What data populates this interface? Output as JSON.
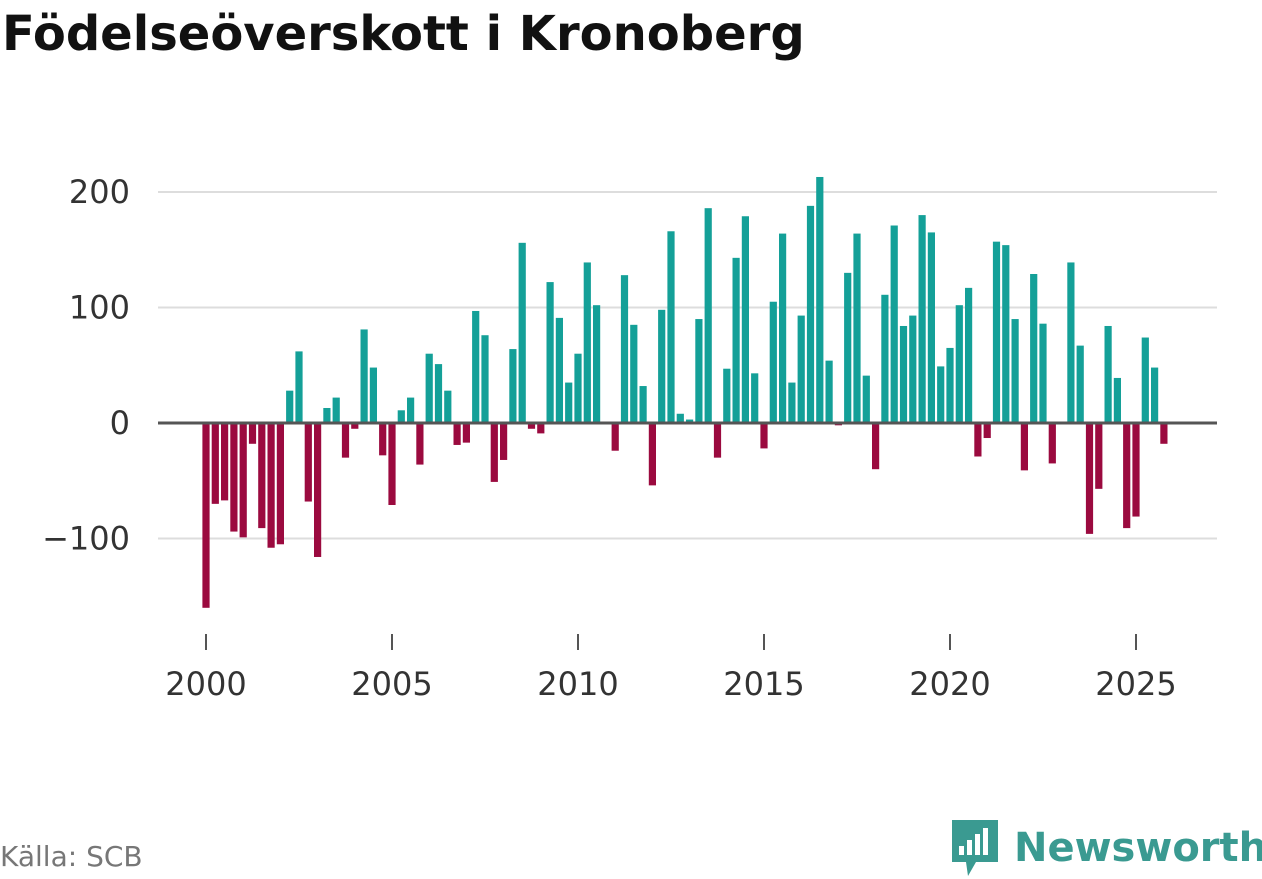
{
  "title": "Födelseöverskott i Kronoberg",
  "source": "Källa: SCB",
  "brand": "Newsworthy",
  "colors": {
    "positive": "#14a098",
    "negative": "#9b0a3f",
    "grid": "#dddddd",
    "zero": "#555555",
    "brand": "#3a9a91"
  },
  "chart_data": {
    "type": "bar",
    "title": "Födelseöverskott i Kronoberg",
    "xlabel": "",
    "ylabel": "",
    "ylim": [
      -170,
      225
    ],
    "yticks": [
      -100,
      0,
      100,
      200
    ],
    "ytick_labels": [
      "−100",
      "0",
      "100",
      "200"
    ],
    "xticks": [
      2000,
      2005,
      2010,
      2015,
      2020,
      2025
    ],
    "xtick_labels": [
      "2000",
      "2005",
      "2010",
      "2015",
      "2020",
      "2025"
    ],
    "x_start": 2000.0,
    "x_step": 0.25,
    "values": [
      -160,
      -70,
      -67,
      -94,
      -99,
      -18,
      -91,
      -108,
      -105,
      28,
      62,
      -68,
      -116,
      13,
      22,
      -30,
      -5,
      81,
      48,
      -28,
      -71,
      11,
      22,
      -36,
      60,
      51,
      28,
      -19,
      -17,
      97,
      76,
      -51,
      -32,
      64,
      156,
      -5,
      -9,
      122,
      91,
      35,
      60,
      139,
      102,
      0,
      -24,
      128,
      85,
      32,
      -54,
      98,
      166,
      8,
      3,
      90,
      186,
      -30,
      47,
      143,
      179,
      43,
      -22,
      105,
      164,
      35,
      93,
      188,
      213,
      54,
      -2,
      130,
      164,
      41,
      -40,
      111,
      171,
      84,
      93,
      180,
      165,
      49,
      65,
      102,
      117,
      -29,
      -13,
      157,
      154,
      90,
      -41,
      129,
      86,
      -35,
      0,
      139,
      67,
      -96,
      -57,
      84,
      39,
      -91,
      -81,
      74,
      48,
      -18
    ]
  }
}
